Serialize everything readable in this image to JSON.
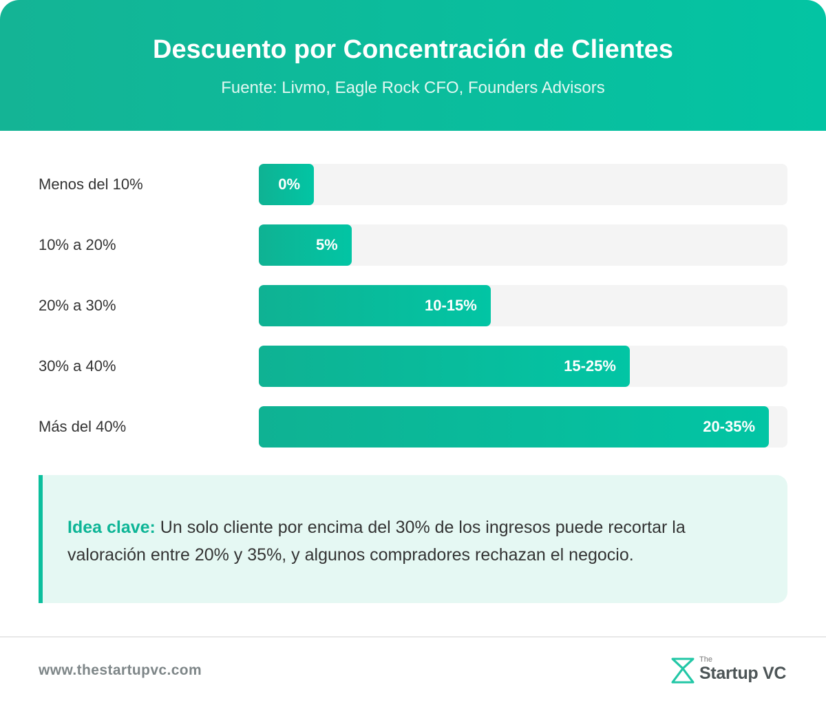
{
  "header": {
    "title": "Descuento por Concentración de Clientes",
    "subtitle": "Fuente: Livmo, Eagle Rock CFO, Founders Advisors"
  },
  "chart_data": {
    "type": "bar",
    "orientation": "horizontal",
    "categories": [
      "Menos del 10%",
      "10% a 20%",
      "20% a 30%",
      "30% a 40%",
      "Más del 40%"
    ],
    "labels": [
      "0%",
      "5%",
      "10-15%",
      "15-25%",
      "20-35%"
    ],
    "values": [
      0,
      5,
      12.5,
      20,
      27.5
    ],
    "value_ranges": [
      [
        0,
        0
      ],
      [
        5,
        5
      ],
      [
        10,
        15
      ],
      [
        15,
        25
      ],
      [
        20,
        35
      ]
    ],
    "xlim": [
      0,
      28.5
    ],
    "colors": {
      "bar": "#0bbf9d",
      "track": "#f4f4f4"
    }
  },
  "insight": {
    "label": "Idea clave:",
    "text": " Un solo cliente por encima del 30% de los ingresos puede recortar la valoración entre 20% y 35%, y algunos compradores rechazan el negocio."
  },
  "footer": {
    "url": "www.thestartupvc.com",
    "logo_the": "The",
    "logo_name": "Startup VC"
  },
  "colors": {
    "accent": "#0bbf9d",
    "header_start": "#14b495",
    "header_end": "#03c4a3"
  }
}
